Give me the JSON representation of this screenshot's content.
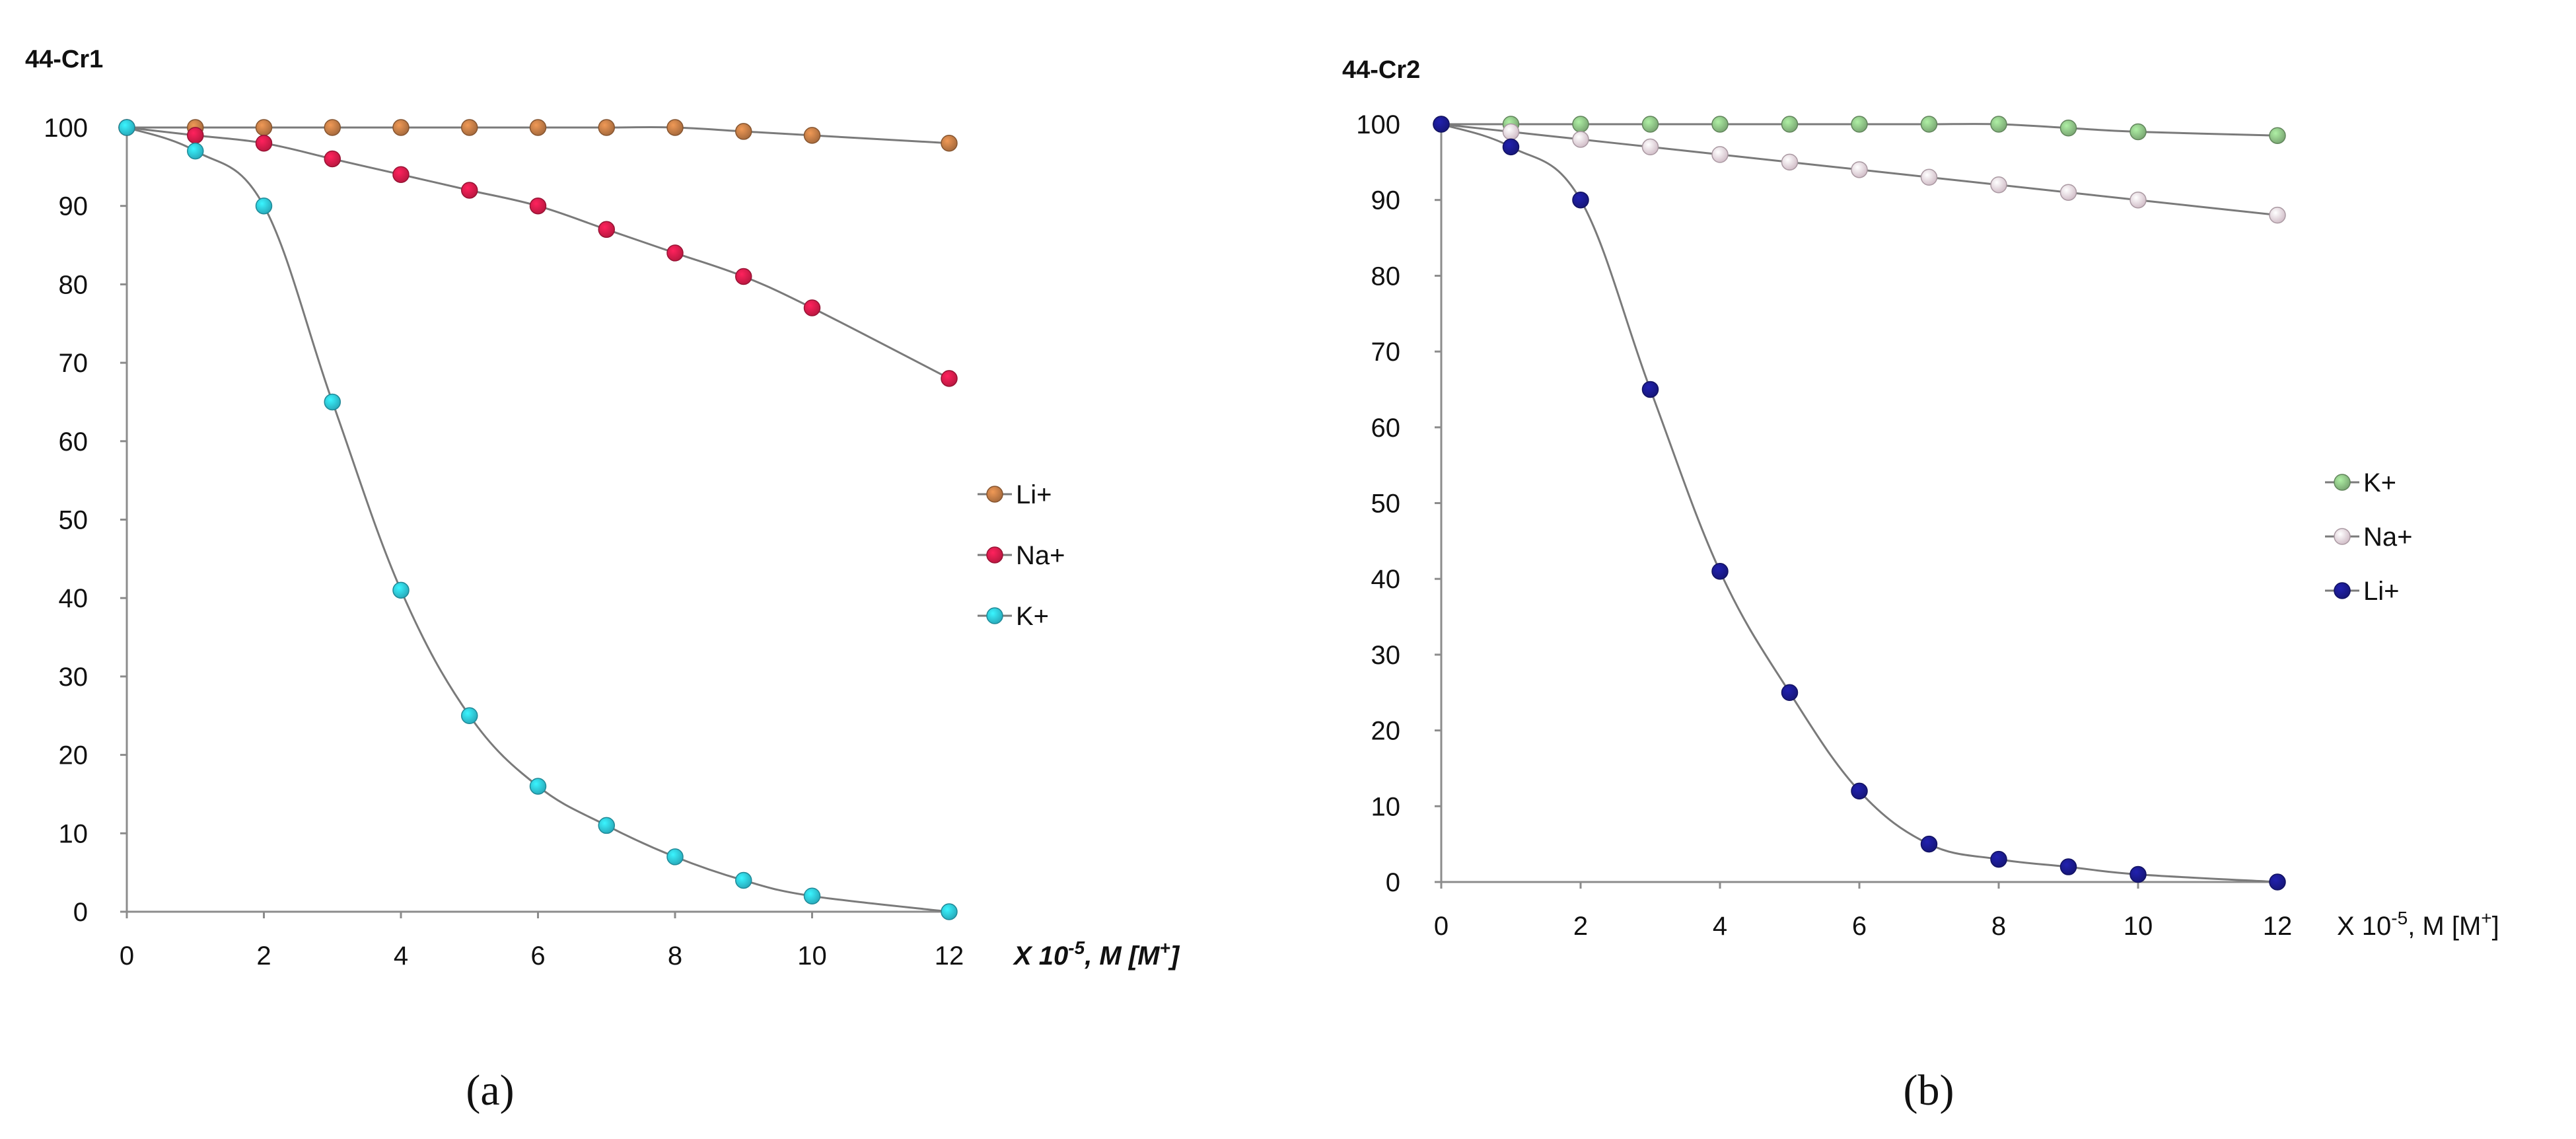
{
  "chart_data": [
    {
      "type": "line",
      "title": "44-Cr1",
      "panel_label": "(a)",
      "xlabel": "X 10",
      "xlabel_exp": "-5",
      "xlabel_unit": ", M   [M",
      "xlabel_sup": "+",
      "xlabel_end": "]",
      "xlabel_style": "italic-bold",
      "ylabel": "",
      "x_ticks": [
        0,
        2,
        4,
        6,
        8,
        10,
        12
      ],
      "y_ticks": [
        0,
        10,
        20,
        30,
        40,
        50,
        60,
        70,
        80,
        90,
        100
      ],
      "xlim": [
        0,
        12
      ],
      "ylim": [
        0,
        100
      ],
      "grid": false,
      "legend_position": "right",
      "x": [
        0,
        1,
        2,
        3,
        4,
        5,
        6,
        7,
        8,
        9,
        10,
        12
      ],
      "series": [
        {
          "name": "Li+",
          "color": "#c07a45",
          "values": [
            100,
            100,
            100,
            100,
            100,
            100,
            100,
            100,
            100,
            99.5,
            99,
            98
          ]
        },
        {
          "name": "Na+",
          "color": "#d81b4a",
          "values": [
            100,
            99,
            98,
            96,
            94,
            92,
            90,
            87,
            84,
            81,
            77,
            68
          ]
        },
        {
          "name": "K+",
          "color": "#2ec4d8",
          "values": [
            100,
            97,
            90,
            65,
            41,
            25,
            16,
            11,
            7,
            4,
            2,
            0
          ]
        }
      ]
    },
    {
      "type": "line",
      "title": "44-Cr2",
      "panel_label": "(b)",
      "xlabel": "X 10",
      "xlabel_exp": "-5",
      "xlabel_unit": ", M   [M",
      "xlabel_sup": "+",
      "xlabel_end": "]",
      "xlabel_style": "normal",
      "ylabel": "",
      "x_ticks": [
        0,
        2,
        4,
        6,
        8,
        10,
        12
      ],
      "y_ticks": [
        0,
        10,
        20,
        30,
        40,
        50,
        60,
        70,
        80,
        90,
        100
      ],
      "xlim": [
        0,
        12
      ],
      "ylim": [
        0,
        100
      ],
      "grid": false,
      "legend_position": "right",
      "x": [
        0,
        1,
        2,
        3,
        4,
        5,
        6,
        7,
        8,
        9,
        10,
        12
      ],
      "series": [
        {
          "name": "K+",
          "color": "#8cc084",
          "values": [
            100,
            100,
            100,
            100,
            100,
            100,
            100,
            100,
            100,
            99.5,
            99,
            98.5
          ]
        },
        {
          "name": "Na+",
          "color": "#f3dbe8",
          "values": [
            100,
            99,
            98,
            97,
            96,
            95,
            94,
            93,
            92,
            91,
            90,
            88
          ]
        },
        {
          "name": "Li+",
          "color": "#1a1a8c",
          "values": [
            100,
            97,
            90,
            65,
            41,
            25,
            12,
            5,
            3,
            2,
            1,
            0
          ]
        }
      ]
    }
  ]
}
